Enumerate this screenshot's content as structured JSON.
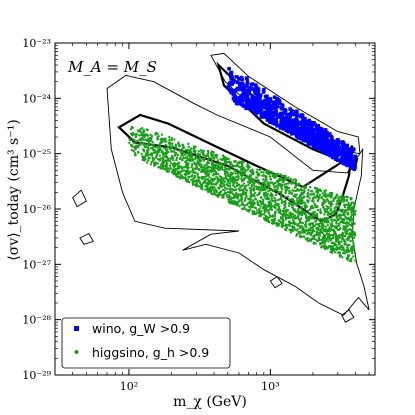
{
  "chart_data": {
    "type": "scatter",
    "title": "",
    "xlabel": "m_χ (GeV)",
    "ylabel": "⟨σv⟩_today (cm³ s⁻¹)",
    "xscale": "log",
    "yscale": "log",
    "xlim": [
      30,
      5500
    ],
    "ylim": [
      1e-29,
      1e-23
    ],
    "x_tick_labels": [
      "10²",
      "10³"
    ],
    "y_tick_labels": [
      "10⁻²⁹",
      "10⁻²⁸",
      "10⁻²⁷",
      "10⁻²⁶",
      "10⁻²⁵",
      "10⁻²⁴",
      "10⁻²³"
    ],
    "annotation": "M_A = M_S",
    "legend_position": "lower-left",
    "series": [
      {
        "name": "wino, g_W >0.9",
        "color": "#0000ff",
        "marker": "square",
        "band": {
          "x_range": [
            500,
            4000
          ],
          "y_at_xmin": [
            1e-24,
            4e-24
          ],
          "y_at_xmax": [
            5e-26,
            1.2e-25
          ]
        }
      },
      {
        "name": "higgsino, g_h >0.9",
        "color": "#1a9e1a",
        "marker": "dot",
        "band": {
          "x_range": [
            100,
            4000
          ],
          "y_at_xmin": [
            1e-25,
            3.5e-25
          ],
          "y_at_xmax": [
            1e-27,
            1.5e-26
          ]
        }
      }
    ],
    "contours": {
      "color": "#000000",
      "levels": [
        "thin",
        "thick"
      ]
    }
  }
}
